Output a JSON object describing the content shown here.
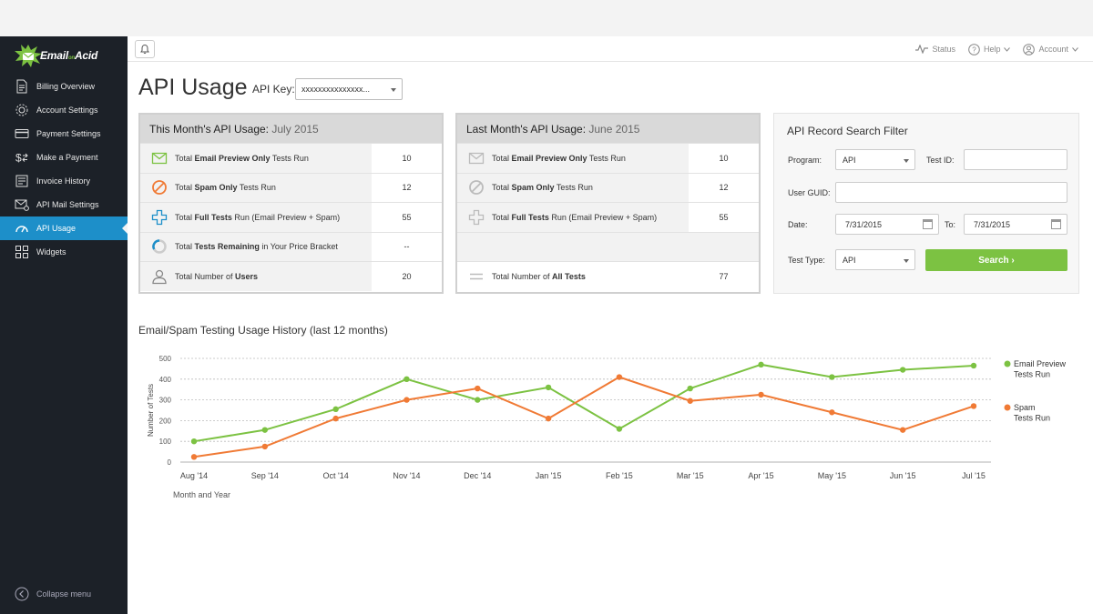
{
  "brand": {
    "name": "Email on Acid",
    "text": "Email",
    "text2": "on",
    "text3": "Acid",
    "color": "#7cc242"
  },
  "sidebar": {
    "items": [
      {
        "label": "Billing Overview",
        "icon": "document-icon"
      },
      {
        "label": "Account Settings",
        "icon": "gear-icon"
      },
      {
        "label": "Payment Settings",
        "icon": "credit-card-icon"
      },
      {
        "label": "Make a Payment",
        "icon": "dollar-transfer-icon"
      },
      {
        "label": "Invoice History",
        "icon": "invoice-icon"
      },
      {
        "label": "API Mail Settings",
        "icon": "api-mail-icon"
      },
      {
        "label": "API Usage",
        "icon": "gauge-icon",
        "active": true
      },
      {
        "label": "Widgets",
        "icon": "grid-icon"
      }
    ],
    "collapse_label": "Collapse menu"
  },
  "header": {
    "status": "Status",
    "help": "Help",
    "account": "Account"
  },
  "page": {
    "title": "API Usage",
    "api_key_label": "API Key:",
    "api_key_value": "xxxxxxxxxxxxxxx..."
  },
  "this_month": {
    "title": "This Month's API Usage:",
    "period": " July 2015",
    "rows": [
      {
        "pre": "Total ",
        "bold": "Email Preview Only",
        "post": " Tests Run",
        "value": "10"
      },
      {
        "pre": "Total ",
        "bold": "Spam Only",
        "post": " Tests Run",
        "value": "12"
      },
      {
        "pre": "Total ",
        "bold": "Full Tests",
        "post": " Run (Email Preview + Spam)",
        "value": "55"
      },
      {
        "pre": "Total ",
        "bold": "Tests Remaining",
        "post": " in Your Price Bracket",
        "value": "--"
      },
      {
        "pre": "Total Number of ",
        "bold": "Users",
        "post": "",
        "value": "20"
      }
    ]
  },
  "last_month": {
    "title": "Last Month's API Usage:",
    "period": " June 2015",
    "rows": [
      {
        "pre": "Total ",
        "bold": "Email Preview Only",
        "post": " Tests Run",
        "value": "10"
      },
      {
        "pre": "Total ",
        "bold": "Spam Only",
        "post": " Tests Run",
        "value": "12"
      },
      {
        "pre": "Total ",
        "bold": "Full Tests",
        "post": " Run (Email Preview + Spam)",
        "value": "55"
      },
      {
        "pre": "Total Number of ",
        "bold": "All Tests",
        "post": "",
        "value": "77"
      }
    ]
  },
  "filter": {
    "title": "API Record Search Filter",
    "program_label": "Program:",
    "program_value": "API",
    "test_id_label": "Test ID:",
    "test_id_value": "",
    "user_guid_label": "User GUID:",
    "user_guid_value": "",
    "date_label": "Date:",
    "date_from": "7/31/2015",
    "to_label": "To:",
    "date_to": "7/31/2015",
    "test_type_label": "Test Type:",
    "test_type_value": "API",
    "search_label": "Search ›"
  },
  "chart_title": "Email/Spam Testing Usage History (last 12 months)",
  "chart_data": {
    "type": "line",
    "categories": [
      "Aug '14",
      "Sep '14",
      "Oct '14",
      "Nov '14",
      "Dec '14",
      "Jan '15",
      "Feb '15",
      "Mar '15",
      "Apr '15",
      "May '15",
      "Jun '15",
      "Jul '15"
    ],
    "series": [
      {
        "name": "Email Preview Tests Run",
        "color": "#7cc242",
        "values": [
          100,
          155,
          255,
          400,
          300,
          360,
          160,
          355,
          470,
          410,
          445,
          465
        ]
      },
      {
        "name": "Spam Tests Run",
        "color": "#f07a35",
        "values": [
          25,
          75,
          210,
          300,
          355,
          210,
          410,
          295,
          325,
          240,
          155,
          270
        ]
      }
    ],
    "ylabel": "Number of Tests",
    "xlabel": "Month and Year",
    "ylim": [
      0,
      500
    ],
    "yticks": [
      "0",
      "100",
      "200",
      "300",
      "400",
      "500"
    ],
    "grid": true,
    "legend": "right"
  }
}
